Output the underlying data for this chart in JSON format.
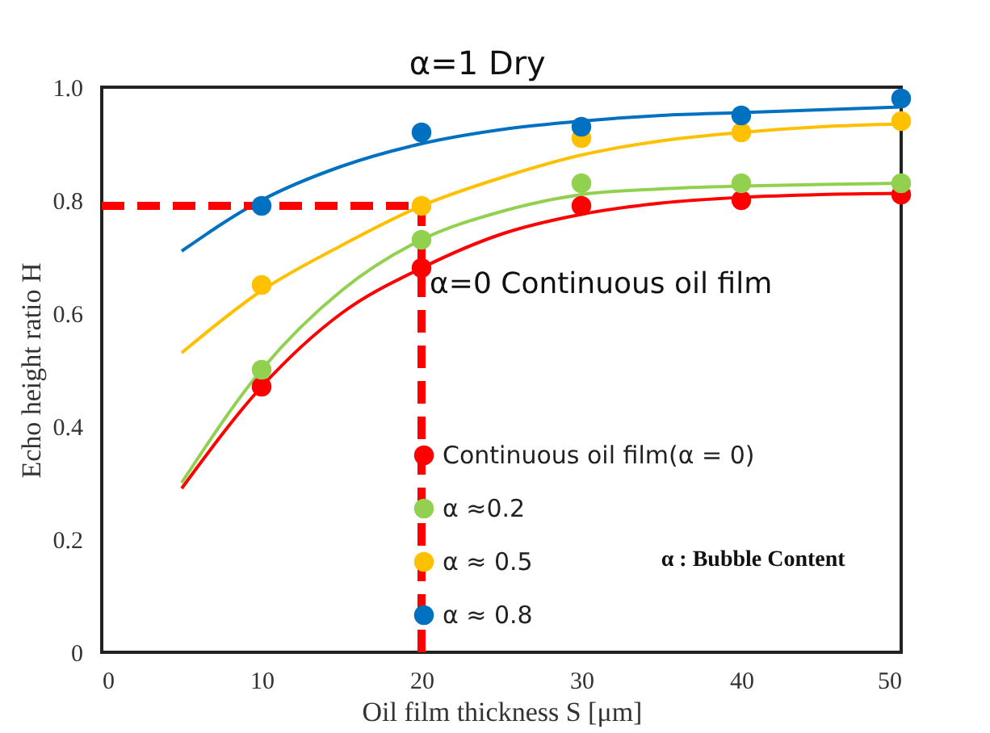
{
  "chart_data": {
    "type": "scatter",
    "xlabel": "Oil film thickness S [μm]",
    "ylabel": "Echo height ratio H",
    "annotations": [
      "α=1  Dry",
      "α=0  Continuous oil film",
      "α : Bubble Content"
    ],
    "xlim": [
      0,
      50
    ],
    "xticks": [
      0,
      10,
      20,
      30,
      40,
      50
    ],
    "ylim": [
      0,
      1
    ],
    "yticks": [
      0,
      0.2,
      0.4,
      0.6,
      0.8,
      {
        "value": 1,
        "label": "1.0"
      }
    ],
    "grid": false,
    "legend": "bottom",
    "marker": "circle",
    "series": [
      {
        "name": "Continuous oil film(α = 0)",
        "color": "#ff0000",
        "x": [
          10,
          20,
          30,
          40,
          50
        ],
        "values": [
          0.47,
          0.68,
          0.79,
          0.8,
          0.81
        ]
      },
      {
        "name": "α ≈0.2",
        "color": "#92d050",
        "x": [
          10,
          20,
          30,
          40,
          50
        ],
        "values": [
          0.5,
          0.73,
          0.83,
          0.83,
          0.83
        ]
      },
      {
        "name": "α ≈ 0.5",
        "color": "#ffc000",
        "x": [
          10,
          20,
          30,
          40,
          50
        ],
        "values": [
          0.65,
          0.79,
          0.91,
          0.92,
          0.94
        ]
      },
      {
        "name": "α ≈ 0.8",
        "color": "#0070c0",
        "x": [
          10,
          20,
          30,
          40,
          50
        ],
        "values": [
          0.79,
          0.92,
          0.93,
          0.95,
          0.98
        ]
      },
      {
        "type": "line",
        "marker": "none",
        "color": "#ff0000",
        "x": [
          5,
          10,
          15,
          20,
          25,
          30,
          35,
          40,
          45,
          50
        ],
        "values": [
          0.29,
          0.47,
          0.6,
          0.68,
          0.74,
          0.775,
          0.795,
          0.805,
          0.81,
          0.812
        ]
      },
      {
        "type": "line",
        "marker": "none",
        "color": "#92d050",
        "x": [
          5,
          10,
          15,
          20,
          25,
          30,
          35,
          40,
          45,
          50
        ],
        "values": [
          0.3,
          0.5,
          0.64,
          0.73,
          0.78,
          0.81,
          0.82,
          0.825,
          0.828,
          0.83
        ]
      },
      {
        "type": "line",
        "marker": "none",
        "color": "#ffc000",
        "x": [
          5,
          10,
          15,
          20,
          25,
          30,
          35,
          40,
          45,
          50
        ],
        "values": [
          0.53,
          0.64,
          0.72,
          0.79,
          0.84,
          0.88,
          0.905,
          0.92,
          0.93,
          0.935
        ]
      },
      {
        "type": "line",
        "marker": "none",
        "color": "#0070c0",
        "x": [
          5,
          10,
          15,
          20,
          25,
          30,
          35,
          40,
          45,
          50
        ],
        "values": [
          0.71,
          0.8,
          0.86,
          0.9,
          0.925,
          0.94,
          0.95,
          0.955,
          0.96,
          0.965
        ]
      }
    ],
    "ref_lines": [
      {
        "axis": "y",
        "value": 0.79,
        "color": "#ff0000",
        "line_style": "dashed"
      },
      {
        "axis": "x",
        "value": 20,
        "color": "#ff0000",
        "line_style": "dashed"
      }
    ]
  }
}
